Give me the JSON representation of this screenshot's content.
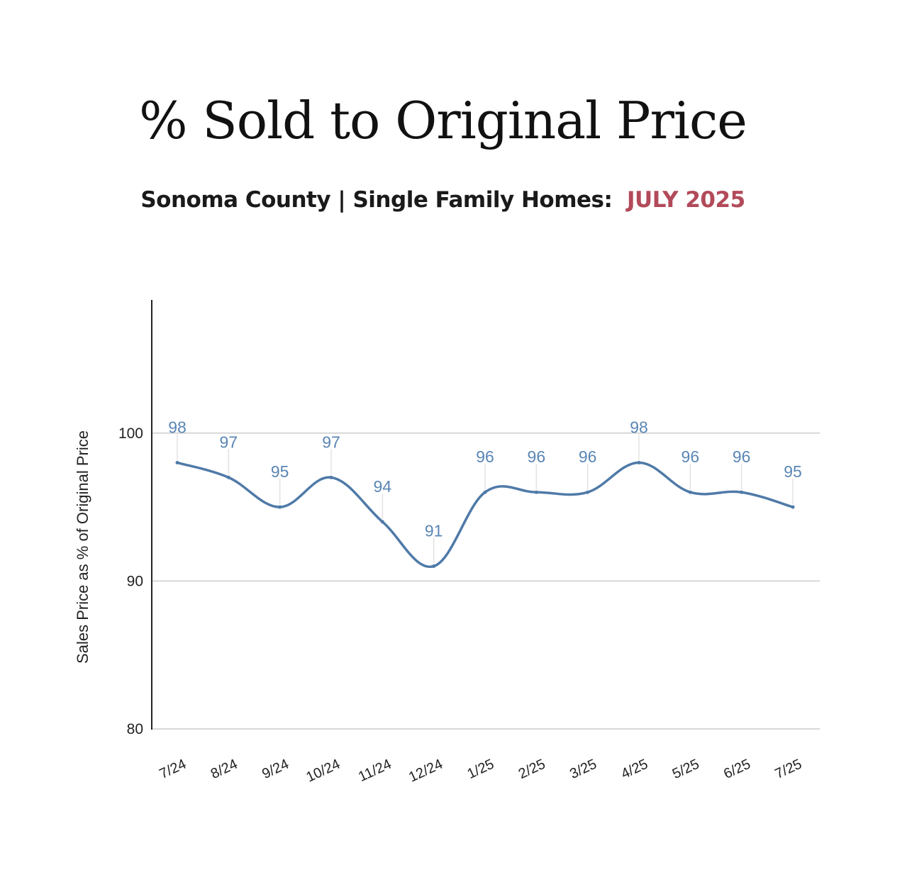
{
  "header": {
    "title": "% Sold to Original Price",
    "subtitle_main": "Sonoma County | Single Family Homes:",
    "subtitle_highlight": "JULY 2025"
  },
  "colors": {
    "line": "#4f7aa8",
    "data_label": "#5a86b4",
    "highlight": "#b24a5a",
    "grid": "#cccccc",
    "axis": "#222222"
  },
  "chart_data": {
    "type": "line",
    "title": "% Sold to Original Price",
    "subtitle": "Sonoma County | Single Family Homes: JULY 2025",
    "xlabel": "",
    "ylabel": "Sales Price as % of Original Price",
    "categories": [
      "7/24",
      "8/24",
      "9/24",
      "10/24",
      "11/24",
      "12/24",
      "1/25",
      "2/25",
      "3/25",
      "4/25",
      "5/25",
      "6/25",
      "7/25"
    ],
    "values": [
      98,
      97,
      95,
      97,
      94,
      91,
      96,
      96,
      96,
      98,
      96,
      96,
      95
    ],
    "ylim": [
      80,
      109
    ],
    "yticks": [
      80,
      90,
      100
    ],
    "grid": "horizontal",
    "smooth": true,
    "data_labels": true,
    "legend": "none"
  }
}
